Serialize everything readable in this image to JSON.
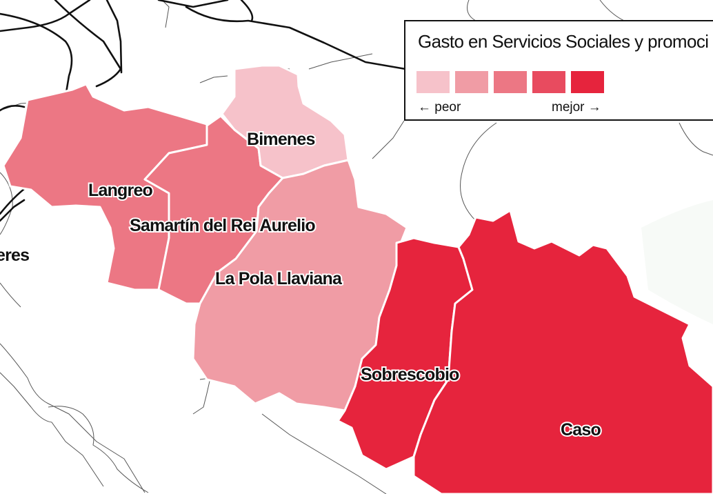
{
  "legend": {
    "title": "Gasto en Servicios Sociales y promoci",
    "low_label": "← peor",
    "high_label": "mejor →",
    "scale": [
      "#f6c2ca",
      "#f09ca5",
      "#ec7784",
      "#e84b5f",
      "#e6243d"
    ]
  },
  "map": {
    "regions": [
      {
        "id": "langreo",
        "name": "Langreo",
        "class": 3,
        "color": "#ec7784"
      },
      {
        "id": "samartin",
        "name": "Samartín del Rei Aurelio",
        "class": 3,
        "color": "#ec7784"
      },
      {
        "id": "bimenes",
        "name": "Bimenes",
        "class": 1,
        "color": "#f6c2ca"
      },
      {
        "id": "la-pola-llaviana",
        "name": "La Pola Llaviana",
        "class": 2,
        "color": "#f09ca5"
      },
      {
        "id": "sobrescobio",
        "name": "Sobrescobio",
        "class": 5,
        "color": "#e6243d"
      },
      {
        "id": "caso",
        "name": "Caso",
        "class": 5,
        "color": "#e6243d"
      }
    ],
    "outside_labels": [
      "eres"
    ]
  }
}
